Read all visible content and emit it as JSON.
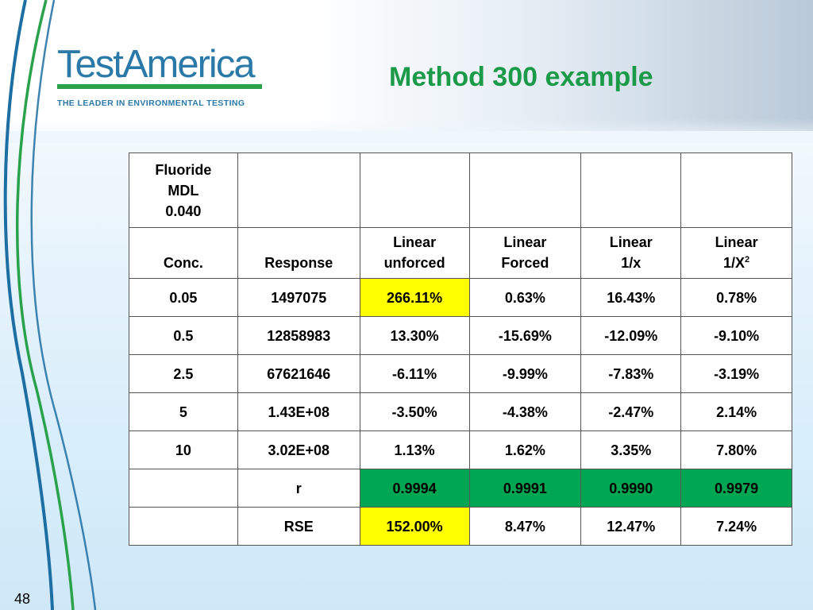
{
  "slide": {
    "title": "Method 300 example",
    "page_number": "48"
  },
  "logo": {
    "wordmark": "TestAmerica",
    "tagline": "THE LEADER IN ENVIRONMENTAL TESTING",
    "colors": {
      "blue": "#2b79a8",
      "green": "#2aa24b"
    }
  },
  "colors": {
    "title": "#1b9a4a",
    "highlight_yellow": "#ffff00",
    "highlight_green": "#00a651"
  },
  "table": {
    "header1": {
      "line1": "Fluoride",
      "line2": "MDL",
      "line3": "0.040"
    },
    "header2": {
      "conc": "Conc.",
      "response": "Response",
      "c3_line1": "Linear",
      "c3_line2": "unforced",
      "c4_line1": "Linear",
      "c4_line2": "Forced",
      "c5_line1": "Linear",
      "c5_line2": "1/x",
      "c6_line1": "Linear",
      "c6_line2": "1/X",
      "c6_sup": "2"
    },
    "rows": [
      [
        "0.05",
        "1497075",
        "266.11%",
        "0.63%",
        "16.43%",
        "0.78%"
      ],
      [
        "0.5",
        "12858983",
        "13.30%",
        "-15.69%",
        "-12.09%",
        "-9.10%"
      ],
      [
        "2.5",
        "67621646",
        "-6.11%",
        "-9.99%",
        "-7.83%",
        "-3.19%"
      ],
      [
        "5",
        "1.43E+08",
        "-3.50%",
        "-4.38%",
        "-2.47%",
        "2.14%"
      ],
      [
        "10",
        "3.02E+08",
        "1.13%",
        "1.62%",
        "3.35%",
        "7.80%"
      ]
    ],
    "r_row": {
      "label": "r",
      "values": [
        "0.9994",
        "0.9991",
        "0.9990",
        "0.9979"
      ]
    },
    "rse_row": {
      "label": "RSE",
      "values": [
        "152.00%",
        "8.47%",
        "12.47%",
        "7.24%"
      ]
    }
  }
}
